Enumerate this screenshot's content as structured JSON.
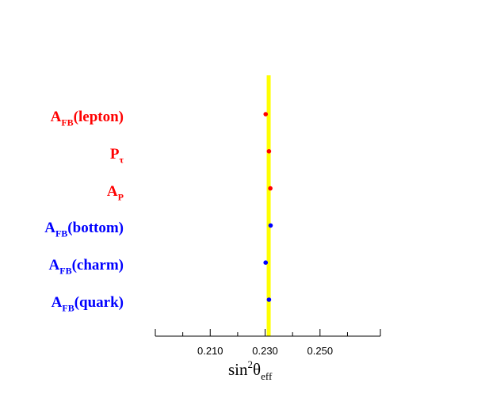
{
  "chart_data": {
    "type": "scatter",
    "orientation": "horizontal",
    "xlim": [
      0.19,
      0.272
    ],
    "ticks": [
      {
        "value": 0.21,
        "label": "0.210"
      },
      {
        "value": 0.23,
        "label": "0.230"
      },
      {
        "value": 0.25,
        "label": "0.250"
      }
    ],
    "minor_ticks": [
      0.19,
      0.2,
      0.22,
      0.24,
      0.26
    ],
    "xlabel": {
      "base": "sin",
      "sup": "2",
      "main": "θ",
      "sub": "eff"
    },
    "reference_band": {
      "value": 0.2313,
      "width": 0.0005,
      "color": "#ffff00"
    },
    "points": [
      {
        "name": "A",
        "sub": "FB",
        "suffix": "(lepton)",
        "x": 0.2302,
        "err": 0.0003,
        "color": "#ff0000"
      },
      {
        "name": "P",
        "sub": "τ",
        "suffix": "",
        "x": 0.2314,
        "err": 0.0006,
        "color": "#ff0000"
      },
      {
        "name": "A",
        "sub": "P",
        "suffix": "",
        "x": 0.2319,
        "err": 0.0007,
        "color": "#ff0000"
      },
      {
        "name": "A",
        "sub": "FB",
        "suffix": "(bottom)",
        "x": 0.232,
        "err": 0.0003,
        "color": "#0000ff"
      },
      {
        "name": "A",
        "sub": "FB",
        "suffix": "(charm)",
        "x": 0.2302,
        "err": 0.0008,
        "color": "#0000ff"
      },
      {
        "name": "A",
        "sub": "FB",
        "suffix": "(quark)",
        "x": 0.2314,
        "err": 0.0006,
        "color": "#0000ff"
      }
    ]
  }
}
